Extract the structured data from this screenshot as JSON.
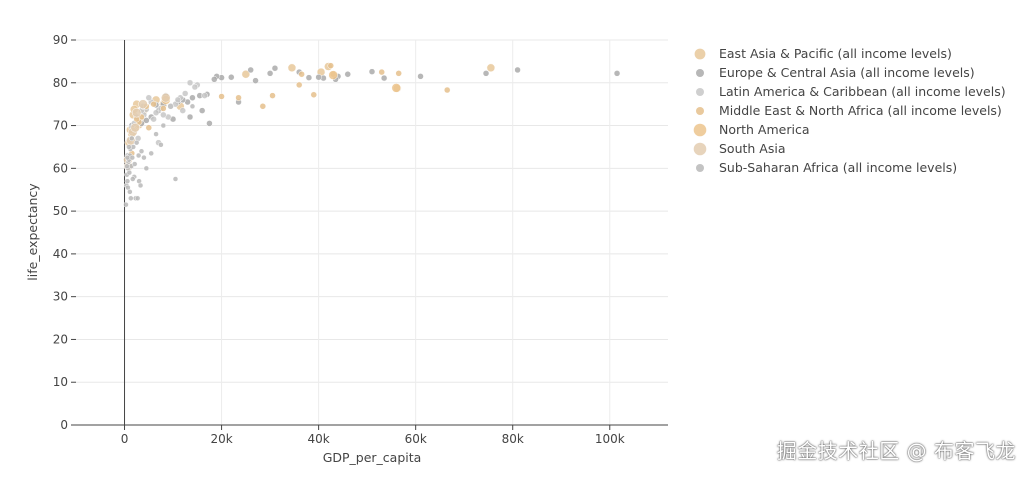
{
  "watermark": "掘金技术社区 @ 布客飞龙",
  "chart_data": {
    "type": "scatter",
    "xlabel": "GDP_per_capita",
    "ylabel": "life_expectancy",
    "xlim": [
      -10000,
      112000
    ],
    "ylim": [
      0,
      90
    ],
    "x_ticks": [
      0,
      20000,
      40000,
      60000,
      80000,
      100000
    ],
    "x_tick_labels": [
      "0",
      "20k",
      "40k",
      "60k",
      "80k",
      "100k"
    ],
    "y_ticks": [
      0,
      10,
      20,
      30,
      40,
      50,
      60,
      70,
      80,
      90
    ],
    "y_tick_labels": [
      "0",
      "10",
      "20",
      "30",
      "40",
      "50",
      "60",
      "70",
      "80",
      "90"
    ],
    "grid": true,
    "legend_position": "right",
    "series": [
      {
        "name": "East Asia & Pacific (all income levels)",
        "color": "#e8c89a",
        "size": 6,
        "points": [
          [
            34500,
            83.5
          ],
          [
            42000,
            83.8
          ],
          [
            56200,
            78.7
          ],
          [
            75500,
            83.5
          ],
          [
            2500,
            75.0
          ],
          [
            1500,
            68.0
          ],
          [
            3500,
            71.0
          ],
          [
            6500,
            76.0
          ],
          [
            2200,
            69.5
          ],
          [
            8000,
            75.0
          ],
          [
            1800,
            72.5
          ],
          [
            11500,
            74.5
          ],
          [
            25000,
            82.0
          ],
          [
            40500,
            82.5
          ],
          [
            4000,
            73.5
          ],
          [
            1200,
            69.0
          ],
          [
            3000,
            70.2
          ],
          [
            900,
            66.0
          ],
          [
            2000,
            73.8
          ]
        ]
      },
      {
        "name": "Europe & Central Asia (all income levels)",
        "color": "#aaaaaa",
        "size": 4,
        "points": [
          [
            101500,
            82.2
          ],
          [
            81000,
            83.0
          ],
          [
            74500,
            82.2
          ],
          [
            61000,
            81.5
          ],
          [
            51000,
            82.6
          ],
          [
            53500,
            81.1
          ],
          [
            46000,
            82.0
          ],
          [
            44000,
            81.5
          ],
          [
            41000,
            81.1
          ],
          [
            43500,
            80.8
          ],
          [
            40000,
            81.3
          ],
          [
            38000,
            81.2
          ],
          [
            36000,
            82.5
          ],
          [
            31000,
            83.4
          ],
          [
            30000,
            82.2
          ],
          [
            27000,
            80.5
          ],
          [
            22000,
            81.3
          ],
          [
            26000,
            83.0
          ],
          [
            20000,
            81.2
          ],
          [
            19000,
            81.5
          ],
          [
            18500,
            80.8
          ],
          [
            17000,
            77.3
          ],
          [
            15500,
            77.0
          ],
          [
            14000,
            76.5
          ],
          [
            13000,
            75.5
          ],
          [
            12000,
            76.0
          ],
          [
            10000,
            71.5
          ],
          [
            11000,
            75.5
          ],
          [
            9500,
            74.5
          ],
          [
            8000,
            75.0
          ],
          [
            7000,
            73.5
          ],
          [
            6500,
            74.8
          ],
          [
            5500,
            72.0
          ],
          [
            4500,
            71.2
          ],
          [
            3500,
            70.5
          ],
          [
            3000,
            71.0
          ],
          [
            17500,
            70.5
          ],
          [
            13500,
            72.0
          ],
          [
            16000,
            73.5
          ],
          [
            23500,
            75.5
          ],
          [
            8500,
            77.0
          ],
          [
            1500,
            70.0
          ]
        ]
      },
      {
        "name": "Latin America & Caribbean (all income levels)",
        "color": "#c7c7c7",
        "size": 4,
        "points": [
          [
            15000,
            79.5
          ],
          [
            13500,
            80.0
          ],
          [
            12500,
            77.5
          ],
          [
            11500,
            76.5
          ],
          [
            10500,
            75.0
          ],
          [
            9500,
            74.5
          ],
          [
            8500,
            76.3
          ],
          [
            7500,
            74.0
          ],
          [
            6500,
            73.0
          ],
          [
            5500,
            75.5
          ],
          [
            4500,
            73.8
          ],
          [
            4000,
            72.5
          ],
          [
            3500,
            73.5
          ],
          [
            3000,
            71.0
          ],
          [
            2500,
            72.0
          ],
          [
            2000,
            70.5
          ],
          [
            1500,
            69.5
          ],
          [
            1000,
            66.5
          ],
          [
            700,
            63.0
          ],
          [
            9000,
            72.0
          ],
          [
            6000,
            71.5
          ],
          [
            14500,
            79.0
          ],
          [
            16500,
            77.0
          ],
          [
            12000,
            73.5
          ],
          [
            7000,
            66.0
          ],
          [
            5000,
            76.5
          ],
          [
            8000,
            72.5
          ],
          [
            11000,
            76.0
          ],
          [
            3800,
            74.5
          ],
          [
            2800,
            67.0
          ]
        ]
      },
      {
        "name": "Middle East & North Africa (all income levels)",
        "color": "#e5c08c",
        "size": 4,
        "points": [
          [
            66500,
            78.3
          ],
          [
            56500,
            82.2
          ],
          [
            53000,
            82.5
          ],
          [
            43000,
            82.0
          ],
          [
            39000,
            77.2
          ],
          [
            36000,
            79.5
          ],
          [
            30500,
            77.0
          ],
          [
            28500,
            74.5
          ],
          [
            23500,
            76.5
          ],
          [
            42500,
            84.0
          ],
          [
            20000,
            76.8
          ],
          [
            8000,
            74.0
          ],
          [
            6000,
            75.0
          ],
          [
            4500,
            74.5
          ],
          [
            3500,
            72.0
          ],
          [
            3000,
            70.8
          ],
          [
            2500,
            71.5
          ],
          [
            5000,
            69.5
          ],
          [
            1500,
            63.5
          ],
          [
            36500,
            82.0
          ]
        ]
      },
      {
        "name": "North America",
        "color": "#ecc48d",
        "size": 7,
        "points": [
          [
            56000,
            78.8
          ],
          [
            43000,
            81.8
          ],
          [
            8500,
            76.0
          ]
        ]
      },
      {
        "name": "South Asia",
        "color": "#e3cdb0",
        "size": 7,
        "points": [
          [
            1700,
            68.5
          ],
          [
            1300,
            66.5
          ],
          [
            700,
            62.0
          ],
          [
            3800,
            75.0
          ],
          [
            8500,
            76.5
          ],
          [
            2200,
            69.5
          ],
          [
            800,
            60.5
          ],
          [
            2500,
            73.0
          ]
        ]
      },
      {
        "name": "Sub-Saharan Africa (all income levels)",
        "color": "#b8b8b8",
        "size": 3,
        "points": [
          [
            300,
            51.5
          ],
          [
            400,
            56.0
          ],
          [
            500,
            58.5
          ],
          [
            600,
            57.0
          ],
          [
            700,
            60.0
          ],
          [
            800,
            61.5
          ],
          [
            900,
            62.0
          ],
          [
            1000,
            59.0
          ],
          [
            1100,
            63.0
          ],
          [
            1200,
            64.5
          ],
          [
            1400,
            60.5
          ],
          [
            1600,
            62.5
          ],
          [
            1800,
            65.0
          ],
          [
            2000,
            58.0
          ],
          [
            2300,
            53.0
          ],
          [
            2500,
            66.0
          ],
          [
            3000,
            57.0
          ],
          [
            3500,
            64.0
          ],
          [
            4000,
            62.5
          ],
          [
            5500,
            63.5
          ],
          [
            6500,
            68.0
          ],
          [
            7500,
            65.5
          ],
          [
            10500,
            57.5
          ],
          [
            14000,
            74.5
          ],
          [
            1300,
            53.0
          ],
          [
            700,
            55.5
          ],
          [
            2700,
            53.0
          ],
          [
            1500,
            67.0
          ],
          [
            4500,
            60.0
          ],
          [
            900,
            65.0
          ],
          [
            1700,
            57.5
          ],
          [
            600,
            62.5
          ],
          [
            1100,
            54.5
          ],
          [
            2100,
            61.0
          ],
          [
            3300,
            56.0
          ],
          [
            500,
            60.5
          ],
          [
            8000,
            70.0
          ],
          [
            2900,
            63.0
          ]
        ]
      }
    ]
  }
}
